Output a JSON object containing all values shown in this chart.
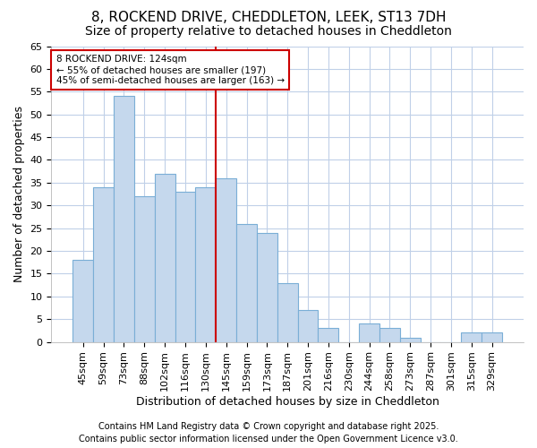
{
  "title1": "8, ROCKEND DRIVE, CHEDDLETON, LEEK, ST13 7DH",
  "title2": "Size of property relative to detached houses in Cheddleton",
  "xlabel": "Distribution of detached houses by size in Cheddleton",
  "ylabel": "Number of detached properties",
  "categories": [
    "45sqm",
    "59sqm",
    "73sqm",
    "88sqm",
    "102sqm",
    "116sqm",
    "130sqm",
    "145sqm",
    "159sqm",
    "173sqm",
    "187sqm",
    "201sqm",
    "216sqm",
    "230sqm",
    "244sqm",
    "258sqm",
    "273sqm",
    "287sqm",
    "301sqm",
    "315sqm",
    "329sqm"
  ],
  "values": [
    18,
    34,
    54,
    32,
    37,
    33,
    34,
    36,
    26,
    24,
    13,
    7,
    3,
    0,
    4,
    3,
    1,
    0,
    0,
    2,
    2
  ],
  "bar_color": "#c5d8ed",
  "bar_edge_color": "#7aaed6",
  "vline_x": 6.5,
  "vline_color": "#cc0000",
  "annotation_text": "8 ROCKEND DRIVE: 124sqm\n← 55% of detached houses are smaller (197)\n45% of semi-detached houses are larger (163) →",
  "annotation_box_color": "white",
  "annotation_box_edge": "#cc0000",
  "footer1": "Contains HM Land Registry data © Crown copyright and database right 2025.",
  "footer2": "Contains public sector information licensed under the Open Government Licence v3.0.",
  "bg_color": "#ffffff",
  "grid_color": "#c0d0e8",
  "ylim": [
    0,
    65
  ],
  "yticks": [
    0,
    5,
    10,
    15,
    20,
    25,
    30,
    35,
    40,
    45,
    50,
    55,
    60,
    65
  ],
  "title1_fontsize": 11,
  "title2_fontsize": 10,
  "xlabel_fontsize": 9,
  "ylabel_fontsize": 9,
  "tick_fontsize": 8,
  "footer_fontsize": 7
}
